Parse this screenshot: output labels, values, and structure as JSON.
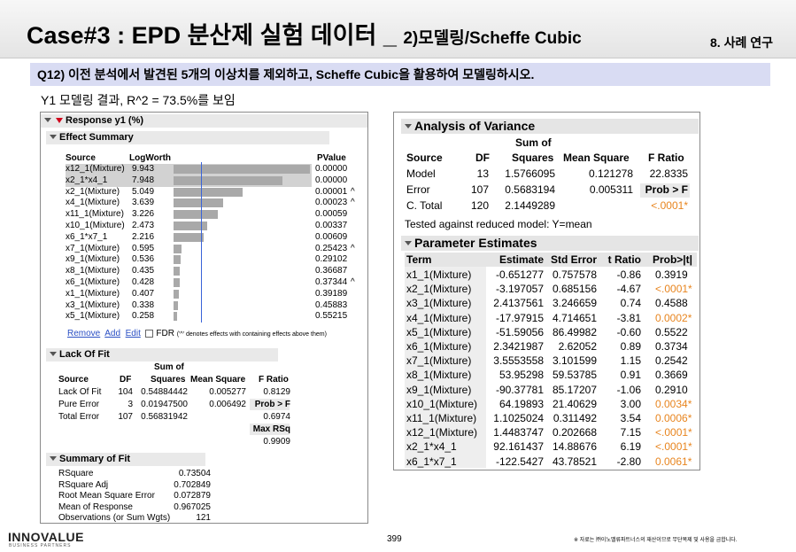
{
  "header": {
    "title_main": "Case#3 : EPD 분산제 실험 데이터 _",
    "title_sub": "2)모델링/Scheffe Cubic",
    "section": "8. 사례 연구"
  },
  "question": "Q12) 이전 분석에서 발견된 5개의 이상치를 제외하고, Scheffe Cubic을 활용하여 모델링하시오.",
  "result_note": "Y1 모델링 결과, R^2 = 73.5%를 보임",
  "left_report": {
    "title": "Response y1 (%)",
    "effect_summary": {
      "title": "Effect Summary",
      "col_source": "Source",
      "col_logworth": "LogWorth",
      "col_pvalue": "PValue",
      "rows": [
        {
          "source": "x12_1(Mixture)",
          "logworth": "9.943",
          "lw": 9.943,
          "pvalue": "0.00000",
          "flag": ""
        },
        {
          "source": "x2_1*x4_1",
          "logworth": "7.948",
          "lw": 7.948,
          "pvalue": "0.00000",
          "flag": ""
        },
        {
          "source": "x2_1(Mixture)",
          "logworth": "5.049",
          "lw": 5.049,
          "pvalue": "0.00001",
          "flag": "^"
        },
        {
          "source": "x4_1(Mixture)",
          "logworth": "3.639",
          "lw": 3.639,
          "pvalue": "0.00023",
          "flag": "^"
        },
        {
          "source": "x11_1(Mixture)",
          "logworth": "3.226",
          "lw": 3.226,
          "pvalue": "0.00059",
          "flag": ""
        },
        {
          "source": "x10_1(Mixture)",
          "logworth": "2.473",
          "lw": 2.473,
          "pvalue": "0.00337",
          "flag": ""
        },
        {
          "source": "x6_1*x7_1",
          "logworth": "2.216",
          "lw": 2.216,
          "pvalue": "0.00609",
          "flag": ""
        },
        {
          "source": "x7_1(Mixture)",
          "logworth": "0.595",
          "lw": 0.595,
          "pvalue": "0.25423",
          "flag": "^"
        },
        {
          "source": "x9_1(Mixture)",
          "logworth": "0.536",
          "lw": 0.536,
          "pvalue": "0.29102",
          "flag": ""
        },
        {
          "source": "x8_1(Mixture)",
          "logworth": "0.435",
          "lw": 0.435,
          "pvalue": "0.36687",
          "flag": ""
        },
        {
          "source": "x6_1(Mixture)",
          "logworth": "0.428",
          "lw": 0.428,
          "pvalue": "0.37344",
          "flag": "^"
        },
        {
          "source": "x1_1(Mixture)",
          "logworth": "0.407",
          "lw": 0.407,
          "pvalue": "0.39189",
          "flag": ""
        },
        {
          "source": "x3_1(Mixture)",
          "logworth": "0.338",
          "lw": 0.338,
          "pvalue": "0.45883",
          "flag": ""
        },
        {
          "source": "x5_1(Mixture)",
          "logworth": "0.258",
          "lw": 0.258,
          "pvalue": "0.55215",
          "flag": ""
        }
      ],
      "ref_logworth": 2,
      "max_logworth": 10,
      "remove_label": "Remove",
      "add_label": "Add",
      "edit_label": "Edit",
      "fdr_label": "FDR",
      "fdr_note": "('^' denotes effects with containing effects above them)"
    },
    "lack_of_fit": {
      "title": "Lack Of Fit",
      "h_sum_of": "Sum of",
      "h_source": "Source",
      "h_df": "DF",
      "h_squares": "Squares",
      "h_mean_square": "Mean Square",
      "h_fratio": "F Ratio",
      "rows": [
        {
          "source": "Lack Of Fit",
          "df": "104",
          "ss": "0.54884442",
          "ms": "0.005277",
          "f": "0.8129"
        },
        {
          "source": "Pure Error",
          "df": "3",
          "ss": "0.01947500",
          "ms": "0.006492",
          "f": "Prob > F"
        },
        {
          "source": "Total Error",
          "df": "107",
          "ss": "0.56831942",
          "ms": "",
          "f": "0.6974"
        }
      ],
      "max_rsq_label": "Max RSq",
      "max_rsq_value": "0.9909"
    },
    "summary_of_fit": {
      "title": "Summary of Fit",
      "rows": [
        {
          "label": "RSquare",
          "value": "0.73504"
        },
        {
          "label": "RSquare Adj",
          "value": "0.702849"
        },
        {
          "label": "Root Mean Square Error",
          "value": "0.072879"
        },
        {
          "label": "Mean of Response",
          "value": "0.967025"
        },
        {
          "label": "Observations (or Sum Wgts)",
          "value": "121"
        }
      ]
    }
  },
  "right_report": {
    "anova": {
      "title": "Analysis of Variance",
      "h_sum_of": "Sum of",
      "h_source": "Source",
      "h_df": "DF",
      "h_squares": "Squares",
      "h_mean_square": "Mean Square",
      "h_fratio": "F Ratio",
      "rows": [
        {
          "source": "Model",
          "df": "13",
          "ss": "1.5766095",
          "ms": "0.121278",
          "f": "22.8335"
        },
        {
          "source": "Error",
          "df": "107",
          "ss": "0.5683194",
          "ms": "0.005311",
          "f": "Prob > F"
        },
        {
          "source": "C. Total",
          "df": "120",
          "ss": "2.1449289",
          "ms": "",
          "f": "<.0001*"
        }
      ],
      "note": "Tested against reduced model: Y=mean"
    },
    "params": {
      "title": "Parameter Estimates",
      "h_term": "Term",
      "h_estimate": "Estimate",
      "h_stderr": "Std Error",
      "h_tratio": "t Ratio",
      "h_prob": "Prob>|t|",
      "rows": [
        {
          "term": "x1_1(Mixture)",
          "est": "-0.651277",
          "se": "0.757578",
          "t": "-0.86",
          "p": "0.3919",
          "sig": false
        },
        {
          "term": "x2_1(Mixture)",
          "est": "-3.197057",
          "se": "0.685156",
          "t": "-4.67",
          "p": "<.0001*",
          "sig": true
        },
        {
          "term": "x3_1(Mixture)",
          "est": "2.4137561",
          "se": "3.246659",
          "t": "0.74",
          "p": "0.4588",
          "sig": false
        },
        {
          "term": "x4_1(Mixture)",
          "est": "-17.97915",
          "se": "4.714651",
          "t": "-3.81",
          "p": "0.0002*",
          "sig": true
        },
        {
          "term": "x5_1(Mixture)",
          "est": "-51.59056",
          "se": "86.49982",
          "t": "-0.60",
          "p": "0.5522",
          "sig": false
        },
        {
          "term": "x6_1(Mixture)",
          "est": "2.3421987",
          "se": "2.62052",
          "t": "0.89",
          "p": "0.3734",
          "sig": false
        },
        {
          "term": "x7_1(Mixture)",
          "est": "3.5553558",
          "se": "3.101599",
          "t": "1.15",
          "p": "0.2542",
          "sig": false
        },
        {
          "term": "x8_1(Mixture)",
          "est": "53.95298",
          "se": "59.53785",
          "t": "0.91",
          "p": "0.3669",
          "sig": false
        },
        {
          "term": "x9_1(Mixture)",
          "est": "-90.37781",
          "se": "85.17207",
          "t": "-1.06",
          "p": "0.2910",
          "sig": false
        },
        {
          "term": "x10_1(Mixture)",
          "est": "64.19893",
          "se": "21.40629",
          "t": "3.00",
          "p": "0.0034*",
          "sig": true
        },
        {
          "term": "x11_1(Mixture)",
          "est": "1.1025024",
          "se": "0.311492",
          "t": "3.54",
          "p": "0.0006*",
          "sig": true
        },
        {
          "term": "x12_1(Mixture)",
          "est": "1.4483747",
          "se": "0.202668",
          "t": "7.15",
          "p": "<.0001*",
          "sig": true
        },
        {
          "term": "x2_1*x4_1",
          "est": "92.161437",
          "se": "14.88676",
          "t": "6.19",
          "p": "<.0001*",
          "sig": true
        },
        {
          "term": "x6_1*x7_1",
          "est": "-122.5427",
          "se": "43.78521",
          "t": "-2.80",
          "p": "0.0061*",
          "sig": true
        }
      ]
    }
  },
  "footer": {
    "logo": "INNOVALUE",
    "logo_sub": "BUSINESS PARTNERS",
    "page": "399",
    "copyright": "※ 자료는 ㈜이노밸류파트너스의 재산이므로 무단복제 및 사용을 금합니다."
  },
  "colors": {
    "question_bg": "#d9dcf3",
    "significant": "#e8851f",
    "ref_line": "#3a64d8",
    "bar": "#a9a9a9"
  }
}
